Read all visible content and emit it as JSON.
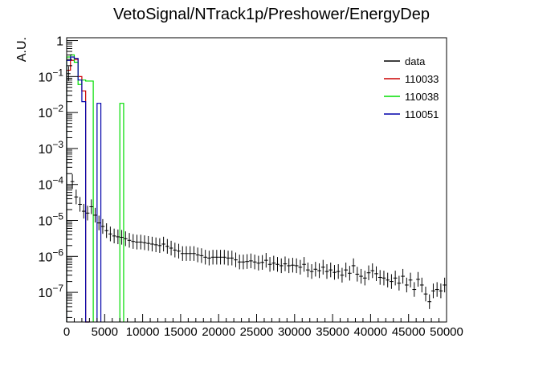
{
  "chart_data": {
    "type": "histogram",
    "title": "VetoSignal/NTrack1p/Preshower/EnergyDep",
    "ylabel": "A.U.",
    "xlabel": "",
    "xlim": [
      0,
      50000
    ],
    "ylim": [
      1.5e-08,
      1.2
    ],
    "y_scale": "log",
    "bin_width": 500,
    "x_ticks": [
      0,
      5000,
      10000,
      15000,
      20000,
      25000,
      30000,
      35000,
      40000,
      45000,
      50000
    ],
    "x_tick_labels": [
      "0",
      "5000",
      "10000",
      "15000",
      "20000",
      "25000",
      "30000",
      "35000",
      "40000",
      "45000",
      "50000"
    ],
    "y_ticks": [
      1,
      0.1,
      0.01,
      0.001,
      0.0001,
      1e-05,
      1e-06,
      1e-07
    ],
    "y_tick_labels": [
      {
        "base": "1",
        "exp": ""
      },
      {
        "base": "10",
        "exp": "−1"
      },
      {
        "base": "10",
        "exp": "−2"
      },
      {
        "base": "10",
        "exp": "−3"
      },
      {
        "base": "10",
        "exp": "−4"
      },
      {
        "base": "10",
        "exp": "−5"
      },
      {
        "base": "10",
        "exp": "−6"
      },
      {
        "base": "10",
        "exp": "−7"
      }
    ],
    "grid": false,
    "legend_position": "top-right",
    "legend": [
      "data",
      "110033",
      "110038",
      "110051"
    ],
    "colors": {
      "data": "#000000",
      "110033": "#cc0000",
      "110038": "#00dd00",
      "110051": "#0000aa"
    },
    "series": [
      {
        "name": "data",
        "kind": "points_with_errors",
        "points": [
          {
            "x": 250,
            "y": 0.12
          },
          {
            "x": 750,
            "y": 0.00012
          },
          {
            "x": 1250,
            "y": 4.5e-05
          },
          {
            "x": 1750,
            "y": 2.8e-05
          },
          {
            "x": 2250,
            "y": 1.8e-05
          },
          {
            "x": 2750,
            "y": 1.6e-05
          },
          {
            "x": 3250,
            "y": 2.4e-05
          },
          {
            "x": 3750,
            "y": 1.4e-05
          },
          {
            "x": 4250,
            "y": 8.5e-06
          },
          {
            "x": 4750,
            "y": 6.8e-06
          },
          {
            "x": 5250,
            "y": 5.2e-06
          },
          {
            "x": 5750,
            "y": 4.2e-06
          },
          {
            "x": 6250,
            "y": 3.7e-06
          },
          {
            "x": 6750,
            "y": 3.5e-06
          },
          {
            "x": 7250,
            "y": 3.4e-06
          },
          {
            "x": 7750,
            "y": 3.1e-06
          },
          {
            "x": 8250,
            "y": 2.8e-06
          },
          {
            "x": 8750,
            "y": 2.6e-06
          },
          {
            "x": 9250,
            "y": 2.5e-06
          },
          {
            "x": 9750,
            "y": 2.5e-06
          },
          {
            "x": 10250,
            "y": 2.4e-06
          },
          {
            "x": 10750,
            "y": 2.3e-06
          },
          {
            "x": 11250,
            "y": 2.2e-06
          },
          {
            "x": 11750,
            "y": 2.1e-06
          },
          {
            "x": 12250,
            "y": 2e-06
          },
          {
            "x": 12750,
            "y": 2.2e-06
          },
          {
            "x": 13250,
            "y": 1.9e-06
          },
          {
            "x": 13750,
            "y": 1.7e-06
          },
          {
            "x": 14250,
            "y": 1.5e-06
          },
          {
            "x": 14750,
            "y": 1.4e-06
          },
          {
            "x": 15250,
            "y": 1.2e-06
          },
          {
            "x": 15750,
            "y": 1.2e-06
          },
          {
            "x": 16250,
            "y": 1.2e-06
          },
          {
            "x": 16750,
            "y": 1.2e-06
          },
          {
            "x": 17250,
            "y": 1.1e-06
          },
          {
            "x": 17750,
            "y": 1.05e-06
          },
          {
            "x": 18250,
            "y": 9.5e-07
          },
          {
            "x": 18750,
            "y": 9e-07
          },
          {
            "x": 19250,
            "y": 9.5e-07
          },
          {
            "x": 19750,
            "y": 9.5e-07
          },
          {
            "x": 20250,
            "y": 9.5e-07
          },
          {
            "x": 20750,
            "y": 9.5e-07
          },
          {
            "x": 21250,
            "y": 9e-07
          },
          {
            "x": 21750,
            "y": 9e-07
          },
          {
            "x": 22250,
            "y": 8e-07
          },
          {
            "x": 22750,
            "y": 7e-07
          },
          {
            "x": 23250,
            "y": 7e-07
          },
          {
            "x": 23750,
            "y": 7.2e-07
          },
          {
            "x": 24250,
            "y": 7.5e-07
          },
          {
            "x": 24750,
            "y": 7e-07
          },
          {
            "x": 25250,
            "y": 6.5e-07
          },
          {
            "x": 25750,
            "y": 6.8e-07
          },
          {
            "x": 26250,
            "y": 7.8e-07
          },
          {
            "x": 26750,
            "y": 6e-07
          },
          {
            "x": 27250,
            "y": 6.5e-07
          },
          {
            "x": 27750,
            "y": 6e-07
          },
          {
            "x": 28250,
            "y": 5.5e-07
          },
          {
            "x": 28750,
            "y": 6.2e-07
          },
          {
            "x": 29250,
            "y": 5.5e-07
          },
          {
            "x": 29750,
            "y": 5.7e-07
          },
          {
            "x": 30250,
            "y": 5.5e-07
          },
          {
            "x": 30750,
            "y": 5e-07
          },
          {
            "x": 31250,
            "y": 6e-07
          },
          {
            "x": 31750,
            "y": 4.2e-07
          },
          {
            "x": 32250,
            "y": 3.8e-07
          },
          {
            "x": 32750,
            "y": 4.4e-07
          },
          {
            "x": 33250,
            "y": 4e-07
          },
          {
            "x": 33750,
            "y": 5e-07
          },
          {
            "x": 34250,
            "y": 3.8e-07
          },
          {
            "x": 34750,
            "y": 4.2e-07
          },
          {
            "x": 35250,
            "y": 3.6e-07
          },
          {
            "x": 35750,
            "y": 3.8e-07
          },
          {
            "x": 36250,
            "y": 3e-07
          },
          {
            "x": 36750,
            "y": 4.2e-07
          },
          {
            "x": 37250,
            "y": 3.4e-07
          },
          {
            "x": 37750,
            "y": 5.5e-07
          },
          {
            "x": 38250,
            "y": 3.2e-07
          },
          {
            "x": 38750,
            "y": 2.8e-07
          },
          {
            "x": 39250,
            "y": 2.5e-07
          },
          {
            "x": 39750,
            "y": 3.5e-07
          },
          {
            "x": 40250,
            "y": 4e-07
          },
          {
            "x": 40750,
            "y": 3.3e-07
          },
          {
            "x": 41250,
            "y": 2.6e-07
          },
          {
            "x": 41750,
            "y": 2.5e-07
          },
          {
            "x": 42250,
            "y": 2.2e-07
          },
          {
            "x": 42750,
            "y": 2e-07
          },
          {
            "x": 43250,
            "y": 2.5e-07
          },
          {
            "x": 43750,
            "y": 1.8e-07
          },
          {
            "x": 44250,
            "y": 2.8e-07
          },
          {
            "x": 44750,
            "y": 1.6e-07
          },
          {
            "x": 45250,
            "y": 2.2e-07
          },
          {
            "x": 45750,
            "y": 1.2e-07
          },
          {
            "x": 46250,
            "y": 2.3e-07
          },
          {
            "x": 46750,
            "y": 1.6e-07
          },
          {
            "x": 47250,
            "y": 9e-08
          },
          {
            "x": 47750,
            "y": 5.5e-08
          },
          {
            "x": 48250,
            "y": 1.1e-07
          },
          {
            "x": 48750,
            "y": 1.2e-07
          },
          {
            "x": 49250,
            "y": 1.1e-07
          },
          {
            "x": 49750,
            "y": 1.6e-07
          }
        ]
      },
      {
        "name": "110033",
        "kind": "step",
        "bins": [
          {
            "x0": 0,
            "x1": 500,
            "y": 0.15
          },
          {
            "x0": 500,
            "x1": 1000,
            "y": 0.28
          },
          {
            "x0": 1000,
            "x1": 1500,
            "y": 0.3
          },
          {
            "x0": 1500,
            "x1": 2000,
            "y": 0.1
          },
          {
            "x0": 2000,
            "x1": 2500,
            "y": 0.04
          },
          {
            "x0": 2500,
            "x1": 3000,
            "y": 0
          }
        ]
      },
      {
        "name": "110038",
        "kind": "step",
        "bins": [
          {
            "x0": 0,
            "x1": 500,
            "y": 0.35
          },
          {
            "x0": 500,
            "x1": 1000,
            "y": 0.4
          },
          {
            "x0": 1000,
            "x1": 1500,
            "y": 0.25
          },
          {
            "x0": 1500,
            "x1": 2000,
            "y": 0.06
          },
          {
            "x0": 2000,
            "x1": 2500,
            "y": 0.08
          },
          {
            "x0": 2500,
            "x1": 3500,
            "y": 0.075
          },
          {
            "x0": 7000,
            "x1": 7500,
            "y": 0.018
          }
        ]
      },
      {
        "name": "110051",
        "kind": "step",
        "bins": [
          {
            "x0": 0,
            "x1": 500,
            "y": 0.28
          },
          {
            "x0": 500,
            "x1": 1000,
            "y": 0.35
          },
          {
            "x0": 1000,
            "x1": 1500,
            "y": 0.32
          },
          {
            "x0": 1500,
            "x1": 2000,
            "y": 0.08
          },
          {
            "x0": 2000,
            "x1": 2500,
            "y": 0.02
          },
          {
            "x0": 2500,
            "x1": 3000,
            "y": 0
          },
          {
            "x0": 4000,
            "x1": 4500,
            "y": 0.018
          }
        ]
      }
    ]
  }
}
